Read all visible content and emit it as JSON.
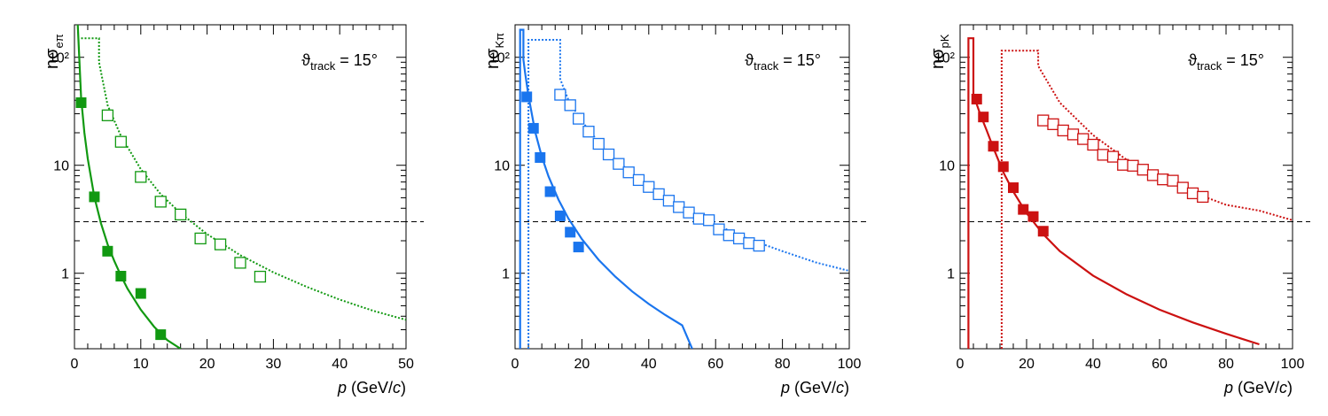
{
  "chart_data": [
    {
      "type": "scatter",
      "panel": "left",
      "color": "#119911",
      "ylabel": {
        "main": "nσ",
        "sub": "eπ"
      },
      "xlabel": {
        "var": "p",
        "unit_prefix": " (GeV/",
        "unit_var": "c",
        "unit_suffix": ")"
      },
      "annotation": {
        "symbol": "ϑ",
        "sub": "track",
        "rest": " = 15°"
      },
      "xlim": [
        0,
        50
      ],
      "ylim": [
        0.2,
        200
      ],
      "yscale": "log",
      "x_ticks": [
        0,
        10,
        20,
        30,
        40,
        50
      ],
      "x_tick_labels": [
        "0",
        "10",
        "20",
        "30",
        "40",
        "50"
      ],
      "y_ticks": [
        1,
        10,
        100
      ],
      "y_tick_labels": [
        "1",
        "10",
        "10²"
      ],
      "threshold": 3,
      "series": [
        {
          "name": "filled squares",
          "style": "filled",
          "x": [
            1,
            3,
            5,
            7,
            10,
            13
          ],
          "y": [
            38,
            5.1,
            1.6,
            0.94,
            0.65,
            0.27
          ]
        },
        {
          "name": "open squares",
          "style": "open",
          "x": [
            5,
            7,
            10,
            13,
            16,
            19,
            22,
            25,
            28
          ],
          "y": [
            29,
            16.5,
            7.8,
            4.6,
            3.5,
            2.1,
            1.85,
            1.25,
            0.93
          ]
        },
        {
          "name": "solid curve",
          "style": "solid",
          "x": [
            0.5,
            1,
            1.5,
            2,
            3,
            4,
            5,
            6,
            7,
            8,
            10,
            12,
            14,
            16
          ],
          "y": [
            200,
            42,
            20,
            11.5,
            5.1,
            2.9,
            1.85,
            1.3,
            0.95,
            0.72,
            0.46,
            0.32,
            0.24,
            0.2
          ]
        },
        {
          "name": "dotted curve",
          "style": "dotted",
          "x": [
            1,
            3.7,
            3.7,
            5,
            7,
            10,
            13,
            16,
            20,
            25,
            30,
            35,
            40,
            45,
            50
          ],
          "y": [
            150,
            150,
            90,
            36,
            18.7,
            9.2,
            5.4,
            3.6,
            2.3,
            1.47,
            1.02,
            0.75,
            0.57,
            0.45,
            0.37
          ]
        }
      ]
    },
    {
      "type": "scatter",
      "panel": "middle",
      "color": "#1a75ee",
      "ylabel": {
        "main": "nσ",
        "sub": "Kπ"
      },
      "xlabel": {
        "var": "p",
        "unit_prefix": " (GeV/",
        "unit_var": "c",
        "unit_suffix": ")"
      },
      "annotation": {
        "symbol": "ϑ",
        "sub": "track",
        "rest": " = 15°"
      },
      "xlim": [
        0,
        100
      ],
      "ylim": [
        0.2,
        200
      ],
      "yscale": "log",
      "x_ticks": [
        0,
        20,
        40,
        60,
        80,
        100
      ],
      "x_tick_labels": [
        "0",
        "20",
        "40",
        "60",
        "80",
        "100"
      ],
      "y_ticks": [
        1,
        10,
        100
      ],
      "y_tick_labels": [
        "1",
        "10",
        "10²"
      ],
      "threshold": 3,
      "series": [
        {
          "name": "filled squares",
          "style": "filled",
          "x": [
            3.5,
            5.5,
            7.5,
            10.5,
            13.5,
            16.5,
            19
          ],
          "y": [
            43,
            22,
            11.8,
            5.7,
            3.4,
            2.4,
            1.75
          ]
        },
        {
          "name": "open squares",
          "style": "open",
          "x": [
            13.5,
            16.5,
            19,
            22,
            25,
            28,
            31,
            34,
            37,
            40,
            43,
            46,
            49,
            52,
            55,
            58,
            61,
            64,
            67,
            70,
            73
          ],
          "y": [
            45,
            36,
            27,
            20.5,
            15.8,
            12.6,
            10.3,
            8.6,
            7.3,
            6.3,
            5.4,
            4.7,
            4.1,
            3.65,
            3.2,
            3.1,
            2.55,
            2.25,
            2.1,
            1.9,
            1.8
          ]
        },
        {
          "name": "solid curve",
          "style": "solid",
          "x": [
            1.5,
            1.5,
            2.5,
            2.5,
            3,
            4,
            6,
            8,
            10,
            13,
            16,
            20,
            25,
            30,
            35,
            40,
            45,
            50,
            53
          ],
          "y": [
            0.2,
            180,
            180,
            95,
            72,
            44,
            20.5,
            12,
            7.9,
            4.8,
            3.2,
            2.07,
            1.33,
            0.93,
            0.68,
            0.52,
            0.41,
            0.33,
            0.2
          ]
        },
        {
          "name": "dotted curve",
          "style": "dotted",
          "x": [
            4,
            4,
            13.5,
            13.5,
            16,
            20,
            25,
            30,
            35,
            40,
            45,
            50,
            55,
            60,
            65,
            70,
            80,
            90,
            100
          ],
          "y": [
            0.2,
            145,
            145,
            63,
            40,
            25.5,
            16.4,
            11.4,
            8.4,
            6.4,
            5.1,
            4.1,
            3.4,
            2.85,
            2.4,
            2.07,
            1.6,
            1.26,
            1.05
          ]
        }
      ]
    },
    {
      "type": "scatter",
      "panel": "right",
      "color": "#cc1111",
      "ylabel": {
        "main": "nσ",
        "sub": "pK"
      },
      "xlabel": {
        "var": "p",
        "unit_prefix": " (GeV/",
        "unit_var": "c",
        "unit_suffix": ")"
      },
      "annotation": {
        "symbol": "ϑ",
        "sub": "track",
        "rest": " = 15°"
      },
      "xlim": [
        0,
        100
      ],
      "ylim": [
        0.2,
        200
      ],
      "yscale": "log",
      "x_ticks": [
        0,
        20,
        40,
        60,
        80,
        100
      ],
      "x_tick_labels": [
        "0",
        "20",
        "40",
        "60",
        "80",
        "100"
      ],
      "y_ticks": [
        1,
        10,
        100
      ],
      "y_tick_labels": [
        "1",
        "10",
        "10²"
      ],
      "threshold": 3,
      "series": [
        {
          "name": "filled squares",
          "style": "filled",
          "x": [
            5,
            7,
            10,
            13,
            16,
            19,
            22,
            25
          ],
          "y": [
            41,
            28,
            15,
            9.7,
            6.2,
            3.9,
            3.35,
            2.45
          ]
        },
        {
          "name": "open squares",
          "style": "open",
          "x": [
            25,
            28,
            31,
            34,
            37,
            40,
            43,
            46,
            49,
            52,
            55,
            58,
            61,
            64,
            67,
            70,
            73
          ],
          "y": [
            26,
            24,
            21,
            19.3,
            17.5,
            15.5,
            12.5,
            12,
            10.1,
            9.9,
            9.1,
            8.1,
            7.4,
            7.2,
            6.2,
            5.5,
            5.1
          ]
        },
        {
          "name": "solid curve",
          "style": "solid",
          "x": [
            2.5,
            2.5,
            4,
            4,
            6,
            8,
            10,
            13,
            16,
            20,
            25,
            30,
            40,
            50,
            60,
            70,
            80,
            90
          ],
          "y": [
            0.2,
            150,
            150,
            45,
            30,
            21,
            14.5,
            8.6,
            5.7,
            3.6,
            2.3,
            1.6,
            0.95,
            0.64,
            0.46,
            0.35,
            0.275,
            0.22
          ]
        },
        {
          "name": "dotted curve",
          "style": "dotted",
          "x": [
            12.5,
            12.5,
            23.5,
            23.5,
            30,
            40,
            50,
            60,
            70,
            80,
            90,
            100
          ],
          "y": [
            0.2,
            115,
            115,
            83,
            38,
            19,
            11.3,
            7.7,
            5.6,
            4.3,
            3.8,
            3.1
          ]
        }
      ]
    }
  ]
}
